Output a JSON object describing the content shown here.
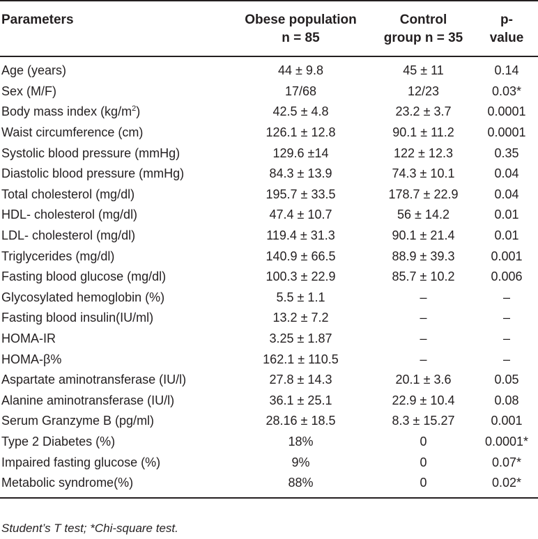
{
  "header": {
    "col0": "Parameters",
    "col1_line1": "Obese population",
    "col1_line2": "n = 85",
    "col2_line1": "Control",
    "col2_line2": "group n = 35",
    "col3_line1": "p-",
    "col3_line2": "value"
  },
  "rows": [
    {
      "param": "Age (years)",
      "obese": "44 ± 9.8",
      "control": "45 ± 11",
      "p": "0.14"
    },
    {
      "param": "Sex (M/F)",
      "obese": "17/68",
      "control": "12/23",
      "p": "0.03*"
    },
    {
      "param": "Body mass index (kg/m",
      "param_sup": "2",
      "param_suffix": ")",
      "obese": "42.5 ± 4.8",
      "control": "23.2 ± 3.7",
      "p": "0.0001"
    },
    {
      "param": "Waist circumference (cm)",
      "obese": "126.1 ± 12.8",
      "control": "90.1 ± 11.2",
      "p": "0.0001"
    },
    {
      "param": "Systolic blood pressure (mmHg)",
      "obese": "129.6 ±14",
      "control": "122 ± 12.3",
      "p": "0.35"
    },
    {
      "param": "Diastolic blood pressure (mmHg)",
      "obese": "84.3 ± 13.9",
      "control": "74.3 ± 10.1",
      "p": "0.04"
    },
    {
      "param": "Total cholesterol (mg/dl)",
      "obese": "195.7 ± 33.5",
      "control": "178.7 ± 22.9",
      "p": "0.04"
    },
    {
      "param": "HDL- cholesterol (mg/dl)",
      "obese": "47.4 ± 10.7",
      "control": "56 ± 14.2",
      "p": "0.01"
    },
    {
      "param": "LDL- cholesterol (mg/dl)",
      "obese": "119.4 ± 31.3",
      "control": "90.1 ± 21.4",
      "p": "0.01"
    },
    {
      "param": "Triglycerides (mg/dl)",
      "obese": "140.9 ± 66.5",
      "control": "88.9 ± 39.3",
      "p": "0.001"
    },
    {
      "param": "Fasting blood glucose (mg/dl)",
      "obese": "100.3 ± 22.9",
      "control": "85.7 ± 10.2",
      "p": "0.006"
    },
    {
      "param": "Glycosylated hemoglobin (%)",
      "obese": "5.5 ± 1.1",
      "control": "–",
      "p": "–"
    },
    {
      "param": "Fasting blood insulin(IU/ml)",
      "obese": "13.2 ± 7.2",
      "control": "–",
      "p": "–"
    },
    {
      "param": "HOMA-IR",
      "obese": "3.25 ± 1.87",
      "control": "–",
      "p": "–"
    },
    {
      "param": "HOMA-β%",
      "obese": "162.1 ± 110.5",
      "control": "–",
      "p": "–"
    },
    {
      "param": "Aspartate aminotransferase (IU/l)",
      "obese": "27.8 ± 14.3",
      "control": "20.1 ± 3.6",
      "p": "0.05"
    },
    {
      "param": "Alanine aminotransferase (IU/l)",
      "obese": "36.1 ± 25.1",
      "control": "22.9 ± 10.4",
      "p": "0.08"
    },
    {
      "param": "Serum Granzyme B (pg/ml)",
      "obese": "28.16 ± 18.5",
      "control": "8.3 ± 15.27",
      "p": "0.001"
    },
    {
      "param": "Type 2 Diabetes (%)",
      "obese": "18%",
      "control": "0",
      "p": "0.0001*"
    },
    {
      "param": "Impaired fasting glucose (%)",
      "obese": "9%",
      "control": "0",
      "p": "0.07*"
    },
    {
      "param": "Metabolic syndrome(%)",
      "obese": "88%",
      "control": "0",
      "p": "0.02*"
    }
  ],
  "footnote": "Student’s T test; *Chi-square test."
}
